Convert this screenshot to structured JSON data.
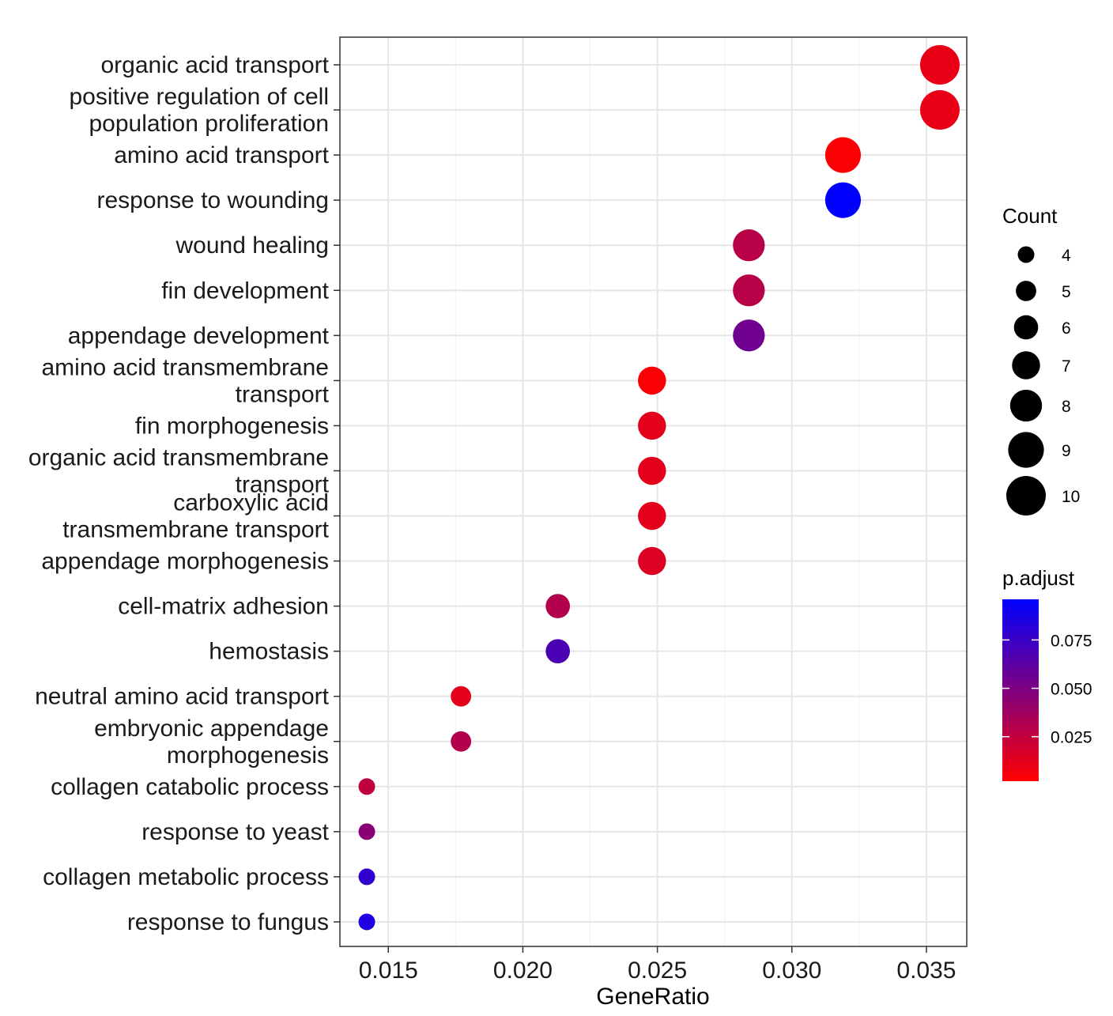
{
  "chart_data": {
    "type": "scatter",
    "xlabel": "GeneRatio",
    "ylabel": "",
    "x_ticks": [
      "0.015",
      "0.020",
      "0.025",
      "0.030",
      "0.035"
    ],
    "x_tick_values": [
      0.015,
      0.02,
      0.025,
      0.03,
      0.035
    ],
    "xlim": [
      0.0132,
      0.0365
    ],
    "grid": true,
    "legend_position": "right",
    "categories": [
      "organic acid transport",
      "positive regulation of cell\npopulation proliferation",
      "amino acid transport",
      "response to wounding",
      "wound healing",
      "fin development",
      "appendage development",
      "amino acid transmembrane\ntransport",
      "fin morphogenesis",
      "organic acid transmembrane\ntransport",
      "carboxylic acid\ntransmembrane transport",
      "appendage morphogenesis",
      "cell-matrix adhesion",
      "hemostasis",
      "neutral amino acid transport",
      "embryonic appendage\nmorphogenesis",
      "collagen catabolic process",
      "response to yeast",
      "collagen metabolic process",
      "response to fungus"
    ],
    "points": [
      {
        "term": "organic acid transport",
        "gene_ratio": 0.0355,
        "count": 10,
        "p_adjust": 0.01
      },
      {
        "term": "positive regulation of cell population proliferation",
        "gene_ratio": 0.0355,
        "count": 10,
        "p_adjust": 0.01
      },
      {
        "term": "amino acid transport",
        "gene_ratio": 0.0319,
        "count": 9,
        "p_adjust": 0.003
      },
      {
        "term": "response to wounding",
        "gene_ratio": 0.0319,
        "count": 9,
        "p_adjust": 0.096
      },
      {
        "term": "wound healing",
        "gene_ratio": 0.0284,
        "count": 8,
        "p_adjust": 0.028
      },
      {
        "term": "fin development",
        "gene_ratio": 0.0284,
        "count": 8,
        "p_adjust": 0.028
      },
      {
        "term": "appendage development",
        "gene_ratio": 0.0284,
        "count": 8,
        "p_adjust": 0.055
      },
      {
        "term": "amino acid transmembrane transport",
        "gene_ratio": 0.0248,
        "count": 7,
        "p_adjust": 0.004
      },
      {
        "term": "fin morphogenesis",
        "gene_ratio": 0.0248,
        "count": 7,
        "p_adjust": 0.012
      },
      {
        "term": "organic acid transmembrane transport",
        "gene_ratio": 0.0248,
        "count": 7,
        "p_adjust": 0.012
      },
      {
        "term": "carboxylic acid transmembrane transport",
        "gene_ratio": 0.0248,
        "count": 7,
        "p_adjust": 0.012
      },
      {
        "term": "appendage morphogenesis",
        "gene_ratio": 0.0248,
        "count": 7,
        "p_adjust": 0.015
      },
      {
        "term": "cell-matrix adhesion",
        "gene_ratio": 0.0213,
        "count": 6,
        "p_adjust": 0.03
      },
      {
        "term": "hemostasis",
        "gene_ratio": 0.0213,
        "count": 6,
        "p_adjust": 0.068
      },
      {
        "term": "neutral amino acid transport",
        "gene_ratio": 0.0177,
        "count": 5,
        "p_adjust": 0.012
      },
      {
        "term": "embryonic appendage morphogenesis",
        "gene_ratio": 0.0177,
        "count": 5,
        "p_adjust": 0.03
      },
      {
        "term": "collagen catabolic process",
        "gene_ratio": 0.0142,
        "count": 4,
        "p_adjust": 0.025
      },
      {
        "term": "response to yeast",
        "gene_ratio": 0.0142,
        "count": 4,
        "p_adjust": 0.045
      },
      {
        "term": "collagen metabolic process",
        "gene_ratio": 0.0142,
        "count": 4,
        "p_adjust": 0.078
      },
      {
        "term": "response to fungus",
        "gene_ratio": 0.0142,
        "count": 4,
        "p_adjust": 0.085
      }
    ],
    "size_legend": {
      "title": "Count",
      "values": [
        4,
        5,
        6,
        7,
        8,
        9,
        10
      ],
      "labels": [
        "4",
        "5",
        "6",
        "7",
        "8",
        "9",
        "10"
      ]
    },
    "color_legend": {
      "title": "p.adjust",
      "low_color": "#FF0000",
      "high_color": "#0000FF",
      "range": [
        0.002,
        0.096
      ],
      "tick_values": [
        0.025,
        0.05,
        0.075
      ],
      "tick_labels": [
        "0.025",
        "0.050",
        "0.075"
      ]
    }
  }
}
